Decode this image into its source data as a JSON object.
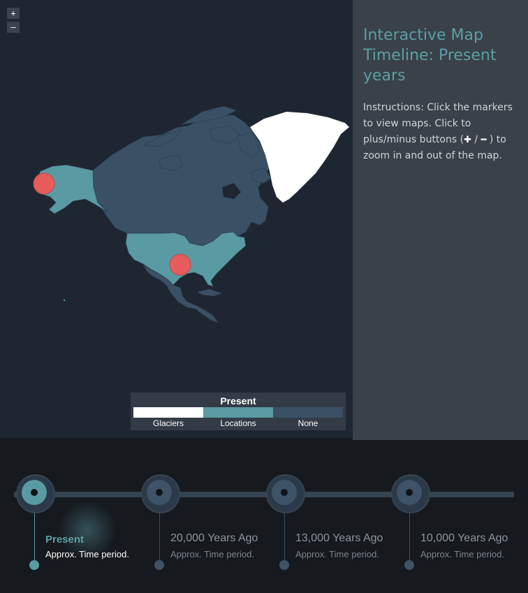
{
  "map": {
    "zoom_in_label": "+",
    "zoom_out_label": "–",
    "colors": {
      "background": "#1d2631",
      "canada": "#3a5065",
      "us_locations": "#5a9aa2",
      "greenland_glaciers": "#ffffff",
      "mexico": "#3a5065",
      "marker": "#e65c5c"
    },
    "markers": [
      {
        "name": "alaska-marker"
      },
      {
        "name": "texas-marker"
      }
    ]
  },
  "legend": {
    "title": "Present",
    "items": [
      {
        "label": "Glaciers",
        "color": "#ffffff"
      },
      {
        "label": "Locations",
        "color": "#5a9aa2"
      },
      {
        "label": "None",
        "color": "#3a5065"
      }
    ]
  },
  "panel": {
    "title": "Interactive Map Timeline: Present years",
    "instructions_part1": "Instructions: Click the markers to view maps. Click to plus/minus buttons (",
    "instructions_plus": "✚",
    "instructions_sep": " / ",
    "instructions_minus": "━",
    "instructions_part2": " ) to zoom in and out of the map."
  },
  "timeline": {
    "items": [
      {
        "label": "Present",
        "sub": "Approx. Time period.",
        "active": true
      },
      {
        "label": "20,000 Years Ago",
        "sub": "Approx. Time period.",
        "active": false
      },
      {
        "label": "13,000 Years Ago",
        "sub": "Approx. Time period.",
        "active": false
      },
      {
        "label": "10,000 Years Ago",
        "sub": "Approx. Time period.",
        "active": false
      }
    ]
  }
}
